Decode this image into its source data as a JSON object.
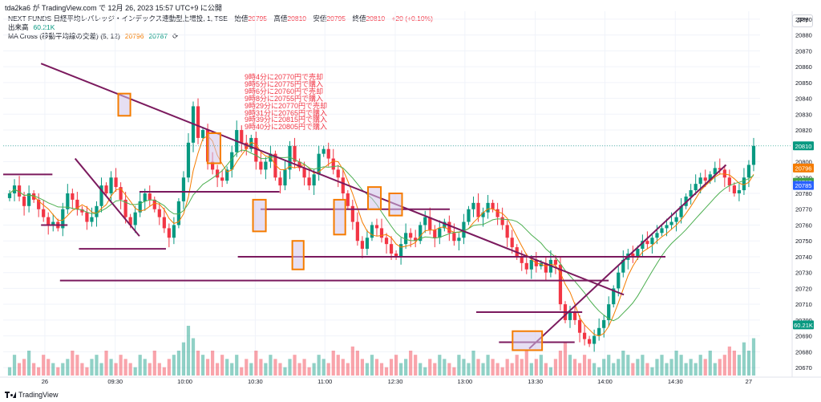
{
  "caption": "tda2ka6 が TradingView.com で 12月 26, 2023 15:57 UTC+9 に公開",
  "legend": {
    "symbol": "NEXT FUNDS 日経平均レバレッジ・インデックス連動型上場投, 1, TSE",
    "ohlc": [
      {
        "label": "始値",
        "value": "20795"
      },
      {
        "label": "高値",
        "value": "20810"
      },
      {
        "label": "安値",
        "value": "20795"
      },
      {
        "label": "終値",
        "value": "20810"
      }
    ],
    "change": "+20 (+0.10%)",
    "volume_label": "出来高",
    "volume_value": "60.21K",
    "ma_label": "MA Cross (移動平均線の交差) (5, 12)",
    "ma_fast": "20796",
    "ma_slow": "20787"
  },
  "currency": "JPY",
  "annotations": [
    "9時4分に20770円で売却",
    "9時5分に20775円で購入",
    "9時6分に20760円で売却",
    "9時8分に20755円で購入",
    "9時29分に20770円で売却",
    "9時31分に20765円で購入",
    "9時39分に20815円で購入",
    "9時40分に20805円で購入"
  ],
  "footer": "TradingView",
  "colors": {
    "up": "#089981",
    "down": "#f23645",
    "trendline": "#7b1a5e",
    "box_border": "#f57c00",
    "box_fill": "#d1c4e9",
    "ma_fast": "#f57c00",
    "ma_slow": "#4caf50",
    "last_price": "#089981",
    "ma_fast_tag": "#f57c00",
    "ma_slow_tag": "#43a047",
    "blue_tag": "#2962ff"
  },
  "chart_data": {
    "type": "candlestick",
    "x_tick_labels": [
      "26",
      "09:30",
      "10:00",
      "10:30",
      "11:00",
      "12:30",
      "13:00",
      "13:30",
      "14:00",
      "14:30",
      "27"
    ],
    "y_tick_labels": [
      "20670",
      "20680",
      "20690",
      "20700",
      "20710",
      "20720",
      "20730",
      "20740",
      "20750",
      "20760",
      "20770",
      "20780",
      "20790",
      "20800",
      "20810",
      "20820",
      "20830",
      "20840",
      "20850",
      "20860",
      "20870",
      "20880",
      "20890"
    ],
    "ylim": [
      20665,
      20895
    ],
    "price_tags": [
      {
        "label": "20810",
        "value": 20810,
        "role": "last_price"
      },
      {
        "label": "20796",
        "value": 20796,
        "role": "ma_fast"
      },
      {
        "label": "20787",
        "value": 20787,
        "role": "ma_slow"
      },
      {
        "label": "20785",
        "value": 20785,
        "role": "blue"
      },
      {
        "label": "60.21K",
        "value": 20697,
        "role": "volume"
      }
    ],
    "price_series": [
      20780,
      20785,
      20778,
      20772,
      20780,
      20776,
      20770,
      20765,
      20760,
      20762,
      20758,
      20770,
      20780,
      20776,
      20770,
      20768,
      20762,
      20765,
      20772,
      20785,
      20780,
      20790,
      20784,
      20776,
      20765,
      20760,
      20768,
      20775,
      20780,
      20776,
      20770,
      20765,
      20758,
      20752,
      20760,
      20775,
      20790,
      20812,
      20835,
      20815,
      20820,
      20800,
      20795,
      20790,
      20788,
      20795,
      20806,
      20820,
      20812,
      20808,
      20815,
      20800,
      20795,
      20800,
      20805,
      20790,
      20785,
      20795,
      20810,
      20800,
      20796,
      20790,
      20785,
      20792,
      20805,
      20808,
      20802,
      20795,
      20790,
      20780,
      20772,
      20762,
      20750,
      20745,
      20752,
      20760,
      20758,
      20752,
      20748,
      20742,
      20740,
      20748,
      20755,
      20752,
      20750,
      20760,
      20765,
      20757,
      20752,
      20758,
      20762,
      20755,
      20750,
      20752,
      20762,
      20770,
      20774,
      20765,
      20768,
      20774,
      20770,
      20765,
      20760,
      20752,
      20746,
      20740,
      20736,
      20732,
      20738,
      20734,
      20736,
      20730,
      20738,
      20735,
      20710,
      20700,
      20705,
      20700,
      20692,
      20688,
      20685,
      20690,
      20695,
      20700,
      20710,
      20720,
      20730,
      20738,
      20742,
      20740,
      20745,
      20750,
      20748,
      20752,
      20755,
      20758,
      20760,
      20762,
      20765,
      20772,
      20778,
      20782,
      20786,
      20790,
      20788,
      20792,
      20796,
      20795,
      20790,
      20785,
      20780,
      20782,
      20790,
      20798,
      20810
    ],
    "volume_series": [
      2,
      5,
      3,
      4,
      6,
      3,
      2,
      5,
      4,
      3,
      2,
      3,
      4,
      6,
      5,
      3,
      2,
      4,
      5,
      3,
      6,
      4,
      3,
      5,
      4,
      3,
      2,
      5,
      4,
      3,
      6,
      3,
      2,
      4,
      5,
      6,
      8,
      12,
      9,
      6,
      5,
      4,
      6,
      3,
      5,
      4,
      3,
      5,
      2,
      4,
      3,
      6,
      4,
      3,
      5,
      4,
      3,
      2,
      4,
      5,
      3,
      4,
      2,
      3,
      5,
      4,
      3,
      6,
      5,
      4,
      3,
      7,
      6,
      4,
      3,
      5,
      4,
      3,
      2,
      4,
      5,
      3,
      4,
      6,
      5,
      3,
      2,
      4,
      3,
      5,
      4,
      3,
      2,
      5,
      4,
      3,
      6,
      4,
      3,
      5,
      4,
      3,
      2,
      4,
      3,
      5,
      4,
      6,
      3,
      4,
      5,
      3,
      2,
      4,
      6,
      8,
      5,
      4,
      3,
      5,
      4,
      3,
      2,
      4,
      5,
      3,
      4,
      6,
      5,
      3,
      4,
      5,
      3,
      2,
      4,
      5,
      3,
      4,
      6,
      5,
      3,
      4,
      3,
      5,
      4,
      6,
      3,
      4,
      5,
      7,
      6,
      5,
      8,
      6,
      9
    ],
    "trend_lines": [
      {
        "from": [
          0.05,
          20862
        ],
        "to": [
          0.82,
          20716
        ]
      },
      {
        "from": [
          0.095,
          20802
        ],
        "to": [
          0.18,
          20753
        ]
      },
      {
        "from": [
          0.695,
          20682
        ],
        "to": [
          0.955,
          20798
        ]
      }
    ],
    "horizontal_levels": [
      {
        "value": 20792,
        "from": 0.0,
        "to": 0.065
      },
      {
        "value": 20760,
        "from": 0.05,
        "to": 0.085
      },
      {
        "value": 20745,
        "from": 0.1,
        "to": 0.215
      },
      {
        "value": 20781,
        "from": 0.18,
        "to": 0.365
      },
      {
        "value": 20770,
        "from": 0.34,
        "to": 0.59
      },
      {
        "value": 20740,
        "from": 0.31,
        "to": 0.875
      },
      {
        "value": 20725,
        "from": 0.075,
        "to": 0.8
      },
      {
        "value": 20705,
        "from": 0.625,
        "to": 0.765
      },
      {
        "value": 20686,
        "from": 0.655,
        "to": 0.755
      }
    ],
    "boxes": [
      {
        "x": [
          0.152,
          0.168
        ],
        "y": [
          20829,
          20843
        ]
      },
      {
        "x": [
          0.27,
          0.287
        ],
        "y": [
          20799,
          20818
        ]
      },
      {
        "x": [
          0.33,
          0.347
        ],
        "y": [
          20756,
          20776
        ]
      },
      {
        "x": [
          0.382,
          0.397
        ],
        "y": [
          20732,
          20750
        ]
      },
      {
        "x": [
          0.437,
          0.452
        ],
        "y": [
          20754,
          20776
        ]
      },
      {
        "x": [
          0.482,
          0.499
        ],
        "y": [
          20770,
          20784
        ]
      },
      {
        "x": [
          0.51,
          0.527
        ],
        "y": [
          20766,
          20780
        ]
      },
      {
        "x": [
          0.673,
          0.712
        ],
        "y": [
          20681,
          20693
        ]
      }
    ]
  }
}
